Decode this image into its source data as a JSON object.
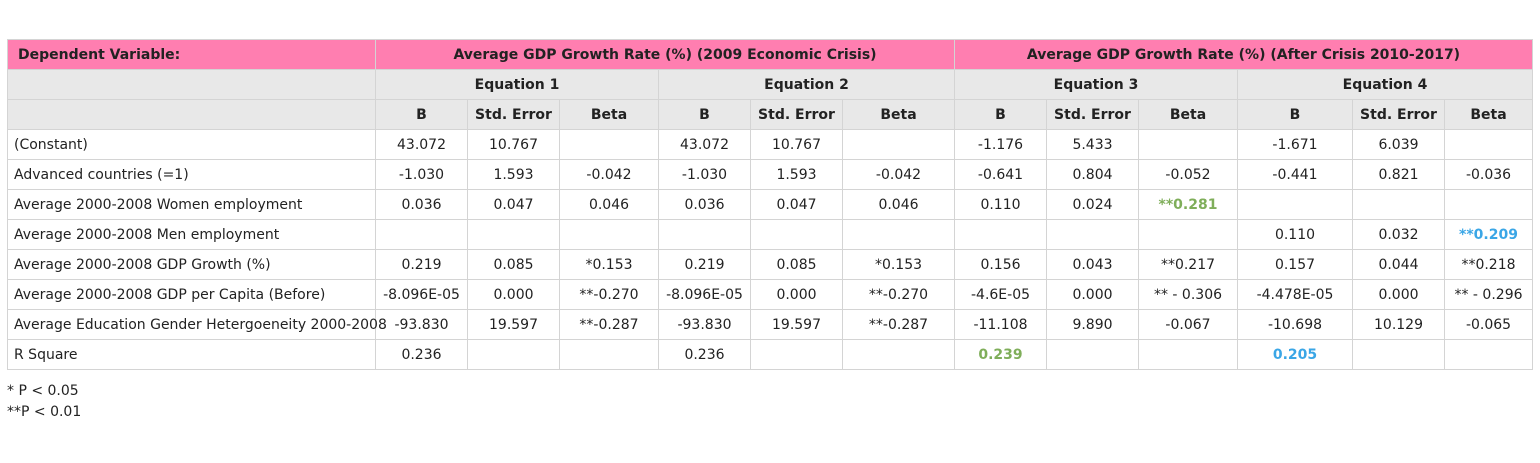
{
  "table": {
    "header": {
      "dependent_label": "Dependent Variable:",
      "group1": "Average GDP  Growth Rate (%) (2009 Economic Crisis)",
      "group2": "Average GDP Growth Rate (%) (After Crisis 2010-2017)"
    },
    "equations": [
      "Equation 1",
      "Equation 2",
      "Equation 3",
      "Equation 4"
    ],
    "columns": [
      "B",
      "Std. Error",
      "Beta",
      "B",
      "Std. Error",
      "Beta",
      "B",
      "Std. Error",
      "Beta",
      "B",
      "Std. Error",
      "Beta"
    ],
    "rows": [
      {
        "label": "(Constant)",
        "cells": [
          "43.072",
          "10.767",
          "",
          "43.072",
          "10.767",
          "",
          "-1.176",
          "5.433",
          "",
          "-1.671",
          "6.039",
          ""
        ]
      },
      {
        "label": "Advanced countries (=1)",
        "cells": [
          "-1.030",
          "1.593",
          "-0.042",
          "-1.030",
          "1.593",
          "-0.042",
          "-0.641",
          "0.804",
          "-0.052",
          "-0.441",
          "0.821",
          "-0.036"
        ]
      },
      {
        "label": "Average 2000-2008 Women employment",
        "cells": [
          "0.036",
          "0.047",
          "0.046",
          "0.036",
          "0.047",
          "0.046",
          "0.110",
          "0.024",
          "**0.281",
          "",
          "",
          ""
        ]
      },
      {
        "label": "Average 2000-2008 Men employment",
        "cells": [
          "",
          "",
          "",
          "",
          "",
          "",
          "",
          "",
          "",
          "0.110",
          "0.032",
          "**0.209"
        ]
      },
      {
        "label": "Average 2000-2008 GDP Growth (%)",
        "cells": [
          "0.219",
          "0.085",
          "*0.153",
          "0.219",
          "0.085",
          "*0.153",
          "0.156",
          "0.043",
          "**0.217",
          "0.157",
          "0.044",
          "**0.218"
        ]
      },
      {
        "label": "Average 2000-2008 GDP per Capita (Before)",
        "cells": [
          "-8.096E-05",
          "0.000",
          "**-0.270",
          "-8.096E-05",
          "0.000",
          "**-0.270",
          "-4.6E-05",
          "0.000",
          "** -  0.306",
          "-4.478E-05",
          "0.000",
          "** -  0.296"
        ]
      },
      {
        "label": "Average  Education Gender Hetergoeneity 2000-2008",
        "cells": [
          "-93.830",
          "19.597",
          "**-0.287",
          "-93.830",
          "19.597",
          "**-0.287",
          "-11.108",
          "9.890",
          "-0.067",
          "-10.698",
          "10.129",
          "-0.065"
        ]
      },
      {
        "label": "R Square",
        "cells": [
          "0.236",
          "",
          "",
          "0.236",
          "",
          "",
          "0.239",
          "",
          "",
          "0.205",
          "",
          ""
        ]
      }
    ],
    "highlight_colors": {
      "green": "#7fae5a",
      "blue": "#3aa6e6",
      "header_pink": "#ff7eb0"
    }
  },
  "notes": [
    "* P < 0.05",
    "**P < 0.01"
  ]
}
